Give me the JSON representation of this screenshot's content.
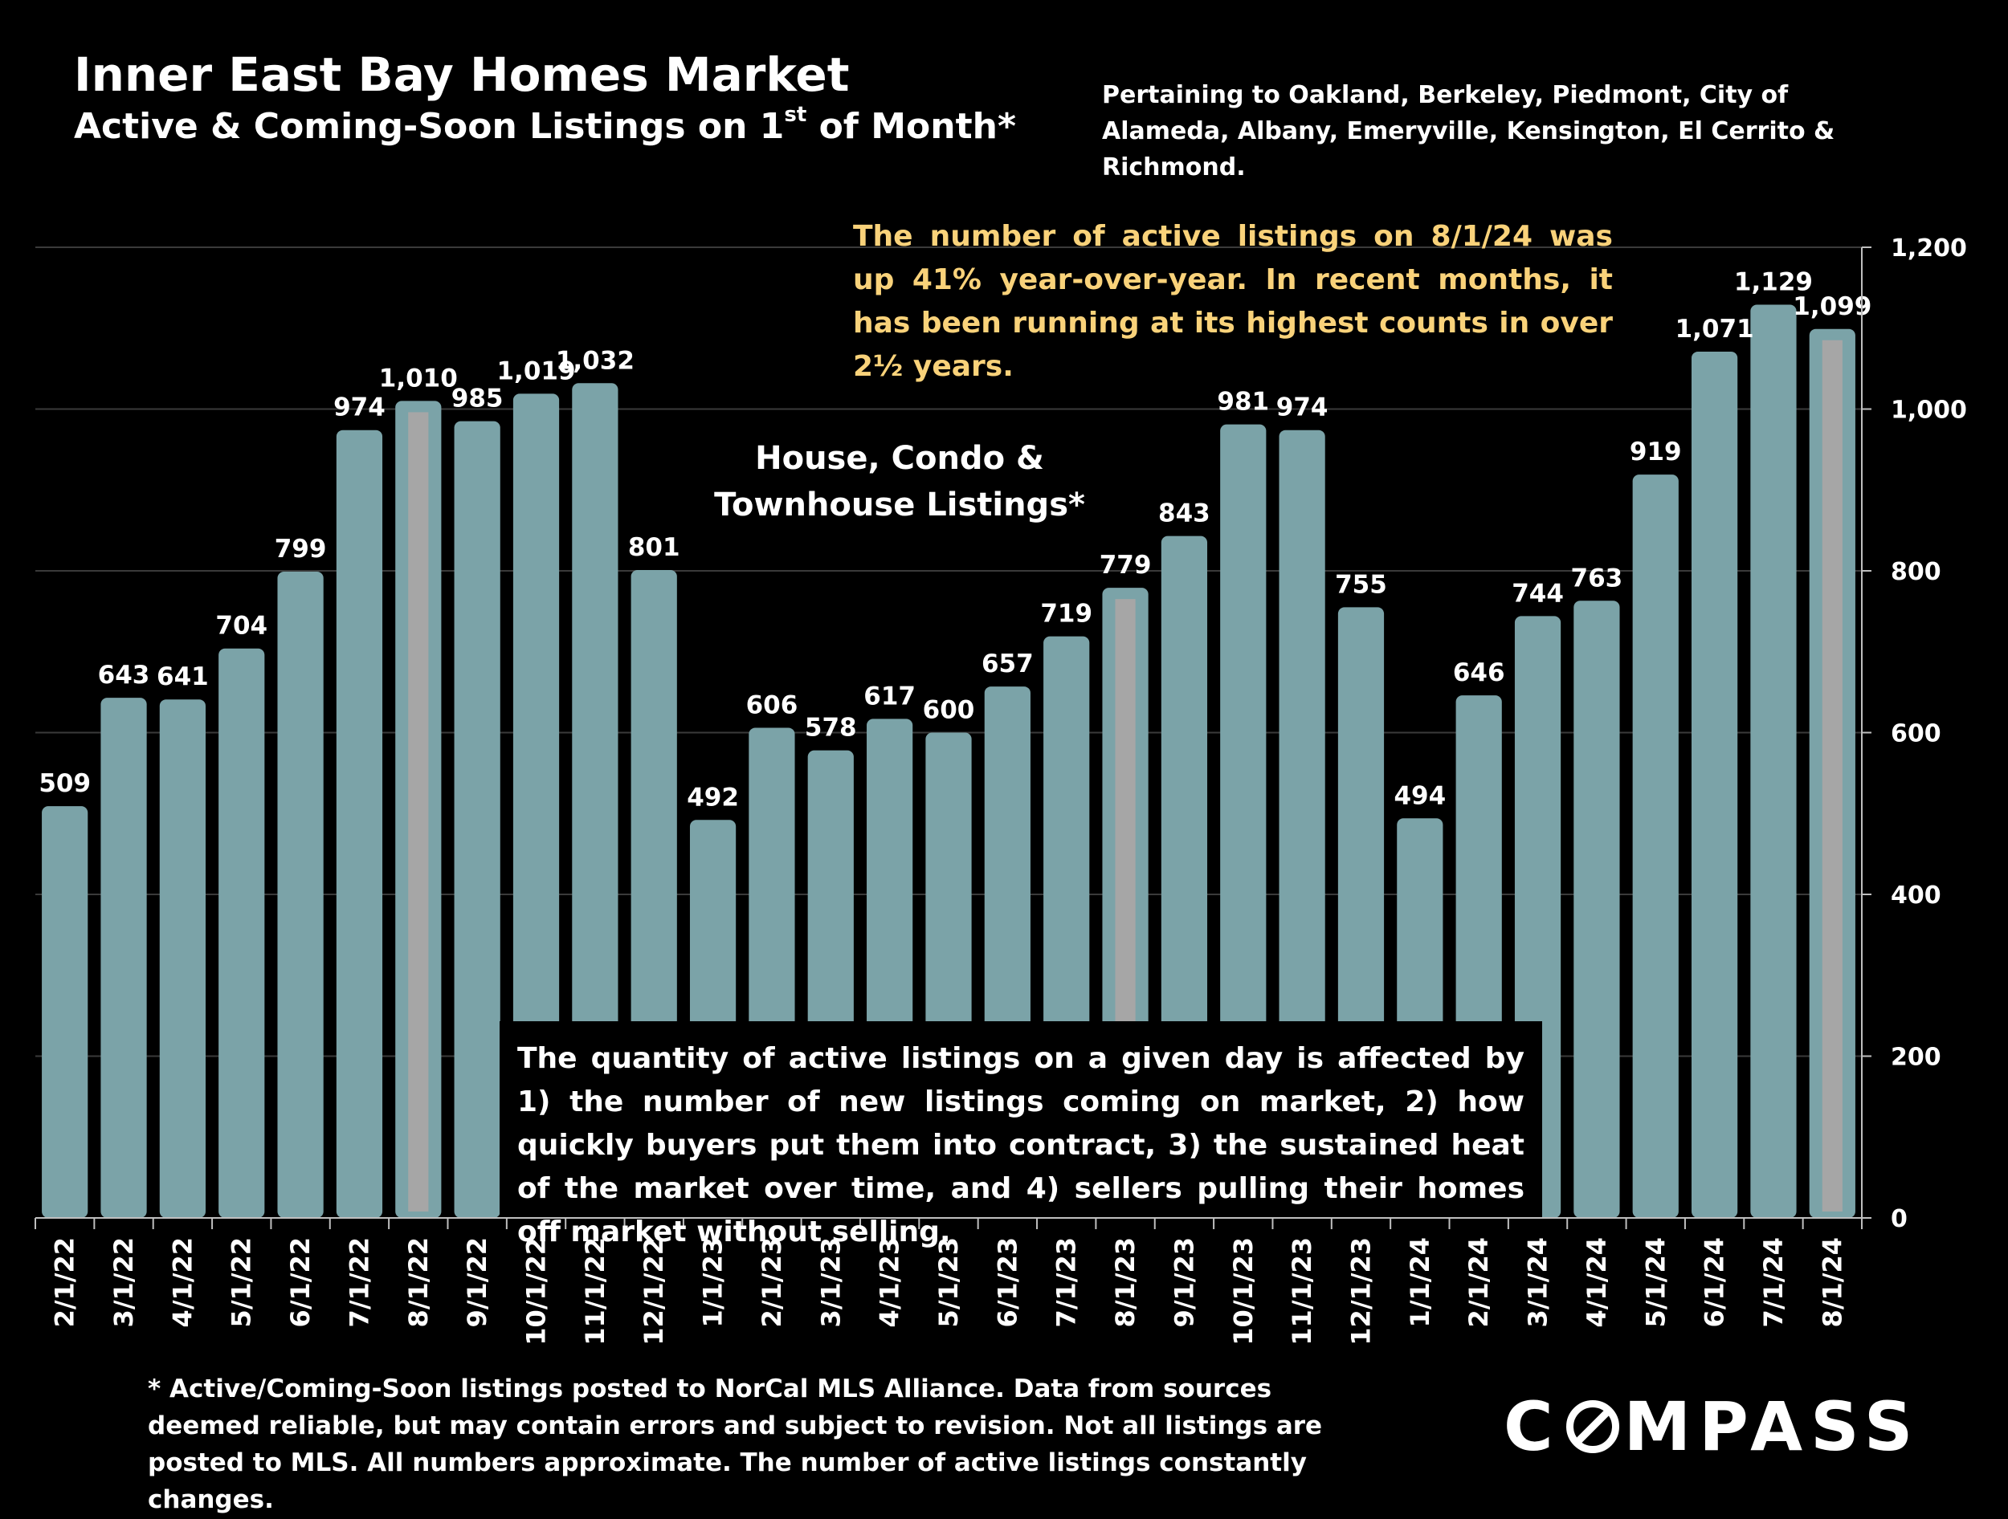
{
  "header": {
    "title": "Inner East Bay Homes Market",
    "subtitle_main": "Active & Coming-Soon Listings on 1",
    "subtitle_sup": "st",
    "subtitle_tail": " of Month*",
    "pertaining": "Pertaining to Oakland, Berkeley, Piedmont, City of Alameda, Albany, Emeryville, Kensington, El Cerrito & Richmond."
  },
  "annotations": {
    "headline": "The number of active listings on 8/1/24 was up 41% year-over-year. In recent months, it has been running at its highest counts in over 2½ years.",
    "series_label_line1": "House, Condo &",
    "series_label_line2": "Townhouse Listings*",
    "note": "The quantity of active listings on a given day is affected by 1) the number of new listings coming on market, 2) how quickly buyers put them into contract, 3) the sustained heat of the market over time, and 4) sellers pulling their homes off market without selling."
  },
  "footnote": "* Active/Coming-Soon listings posted to NorCal MLS Alliance.  Data from sources deemed reliable, but may contain errors and subject to revision.  Not all listings are posted to MLS. All numbers approximate. The number of active listings constantly changes.",
  "logo": {
    "text_left": "C",
    "text_right": "MPASS"
  },
  "chart_data": {
    "type": "bar",
    "categories": [
      "2/1/22",
      "3/1/22",
      "4/1/22",
      "5/1/22",
      "6/1/22",
      "7/1/22",
      "8/1/22",
      "9/1/22",
      "10/1/22",
      "11/1/22",
      "12/1/22",
      "1/1/23",
      "2/1/23",
      "3/1/23",
      "4/1/23",
      "5/1/23",
      "6/1/23",
      "7/1/23",
      "8/1/23",
      "9/1/23",
      "10/1/23",
      "11/1/23",
      "12/1/23",
      "1/1/24",
      "2/1/24",
      "3/1/24",
      "4/1/24",
      "5/1/24",
      "6/1/24",
      "7/1/24",
      "8/1/24"
    ],
    "values": [
      509,
      643,
      641,
      704,
      799,
      974,
      1010,
      985,
      1019,
      1032,
      801,
      492,
      606,
      578,
      617,
      600,
      657,
      719,
      779,
      843,
      981,
      974,
      755,
      494,
      646,
      744,
      763,
      919,
      1071,
      1129,
      1099
    ],
    "value_labels": [
      "509",
      "643",
      "641",
      "704",
      "799",
      "974",
      "1,010",
      "985",
      "1,019",
      "1,032",
      "801",
      "492",
      "606",
      "578",
      "617",
      "600",
      "657",
      "719",
      "779",
      "843",
      "981",
      "974",
      "755",
      "494",
      "646",
      "744",
      "763",
      "919",
      "1,071",
      "1,129",
      "1,099"
    ],
    "highlighted": [
      "8/1/22",
      "8/1/23",
      "8/1/24"
    ],
    "y_ticks": [
      0,
      200,
      400,
      600,
      800,
      1000,
      1200
    ],
    "y_tick_labels": [
      "0",
      "200",
      "400",
      "600",
      "800",
      "1,000",
      "1,200"
    ],
    "ylim": [
      0,
      1200
    ],
    "y_axis_side": "right",
    "grid": true,
    "title": "Inner East Bay Homes Market",
    "colors": {
      "bar": "#7ba3a8",
      "highlight": "#a6a6a6",
      "grid": "#3a3a3a",
      "axis": "#bfbfbf"
    }
  }
}
